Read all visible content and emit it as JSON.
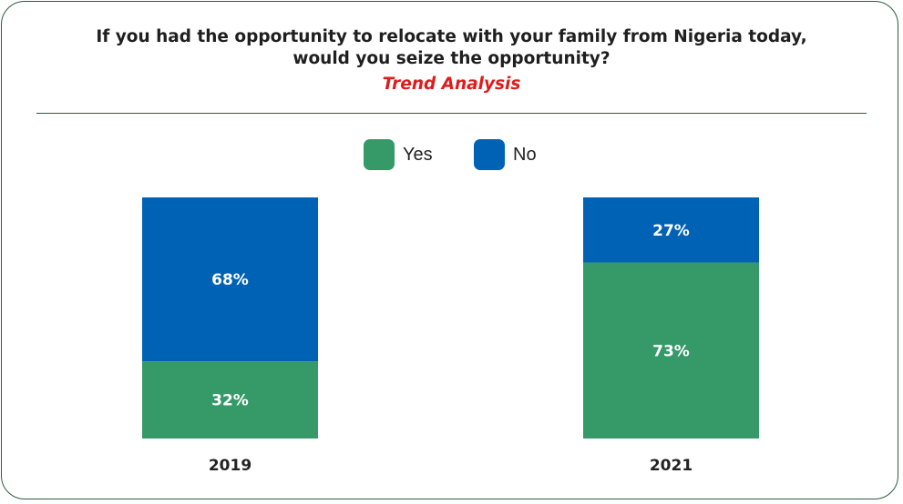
{
  "title_line1": "If you had the opportunity to relocate with your family from Nigeria today,",
  "title_line2": "would you seize the opportunity?",
  "subtitle": "Trend Analysis",
  "legend": [
    {
      "label": "Yes",
      "color": "#359968"
    },
    {
      "label": "No",
      "color": "#0062b4"
    }
  ],
  "chart_data": {
    "type": "bar",
    "stacked": true,
    "categories": [
      "2019",
      "2021"
    ],
    "series": [
      {
        "name": "Yes",
        "values": [
          32,
          73
        ],
        "labels": [
          "32%",
          "73%"
        ],
        "color": "#359968"
      },
      {
        "name": "No",
        "values": [
          68,
          27
        ],
        "labels": [
          "68%",
          "27%"
        ],
        "color": "#0062b4"
      }
    ],
    "ylim": [
      0,
      100
    ],
    "legend_position": "top-center",
    "grid": false
  }
}
